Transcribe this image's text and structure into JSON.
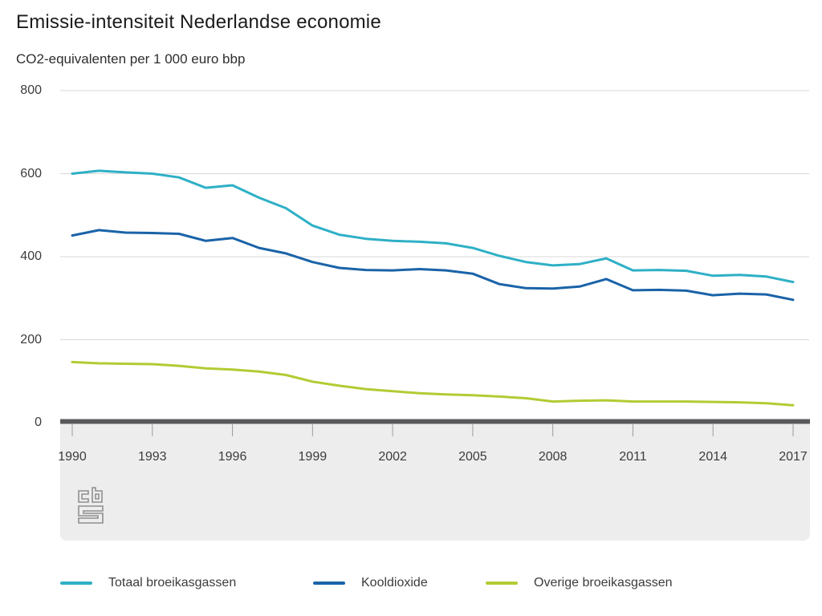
{
  "header": {
    "title": "Emissie-intensiteit Nederlandse economie",
    "subtitle": "CO2-equivalenten per 1 000 euro bbp"
  },
  "chart_data": {
    "type": "line",
    "x": [
      1990,
      1991,
      1992,
      1993,
      1994,
      1995,
      1996,
      1997,
      1998,
      1999,
      2000,
      2001,
      2002,
      2003,
      2004,
      2005,
      2006,
      2007,
      2008,
      2009,
      2010,
      2011,
      2012,
      2013,
      2014,
      2015,
      2016,
      2017
    ],
    "series": [
      {
        "name": "Totaal broeikasgassen",
        "color": "#2eb0c6",
        "values": [
          600,
          607,
          603,
          600,
          591,
          566,
          572,
          542,
          517,
          475,
          453,
          443,
          438,
          436,
          432,
          421,
          402,
          387,
          379,
          382,
          396,
          367,
          368,
          366,
          354,
          356,
          352,
          339
        ]
      },
      {
        "name": "Kooldioxide",
        "color": "#1a63a8",
        "values": [
          451,
          464,
          458,
          457,
          455,
          438,
          445,
          421,
          408,
          387,
          373,
          368,
          367,
          370,
          367,
          359,
          334,
          324,
          323,
          328,
          346,
          319,
          320,
          318,
          307,
          311,
          309,
          296
        ]
      },
      {
        "name": "Overige broeikasgassen",
        "color": "#b3cb33",
        "values": [
          146,
          143,
          142,
          141,
          137,
          131,
          128,
          123,
          115,
          99,
          89,
          81,
          76,
          71,
          68,
          66,
          63,
          59,
          51,
          53,
          54,
          51,
          51,
          51,
          50,
          49,
          47,
          42
        ]
      }
    ],
    "ylim": [
      0,
      800
    ],
    "yticks": [
      0,
      200,
      400,
      600,
      800
    ],
    "xticks": [
      1990,
      1993,
      1996,
      1999,
      2002,
      2005,
      2008,
      2011,
      2014,
      2017
    ],
    "grid": "horizontal",
    "legend_position": "bottom"
  },
  "branding": {
    "logo": "cbs-logo"
  },
  "colors": {
    "grid": "#d9d9d9",
    "axis_bar": "#58595b",
    "tick": "#9c9c9c",
    "band": "#ededed",
    "logo": "#8f8f8f",
    "text": "#3c3c3c"
  }
}
